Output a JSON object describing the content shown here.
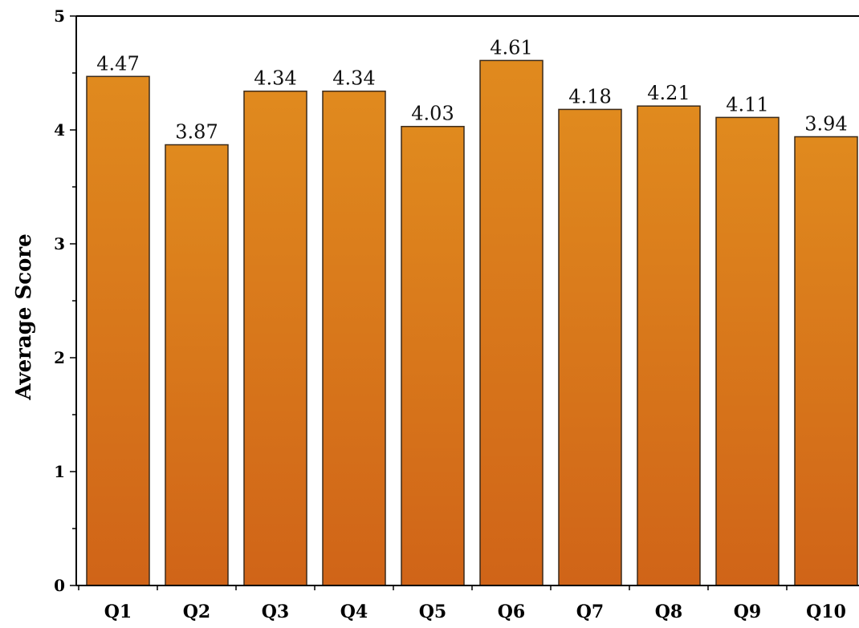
{
  "chart_data": {
    "type": "bar",
    "title": "",
    "xlabel": "",
    "ylabel": "Average Score",
    "ylim": [
      0,
      5
    ],
    "yticks": [
      0,
      1,
      2,
      3,
      4,
      5
    ],
    "categories": [
      "Q1",
      "Q2",
      "Q3",
      "Q4",
      "Q5",
      "Q6",
      "Q7",
      "Q8",
      "Q9",
      "Q10"
    ],
    "values": [
      4.47,
      3.87,
      4.34,
      4.34,
      4.03,
      4.61,
      4.18,
      4.21,
      4.11,
      3.94
    ],
    "data_labels": [
      "4.47",
      "3.87",
      "4.34",
      "4.34",
      "4.03",
      "4.61",
      "4.18",
      "4.21",
      "4.11",
      "3.94"
    ],
    "bar_color_top": "#e08a1e",
    "bar_color_bottom": "#d06418",
    "grid": false,
    "legend": "none"
  }
}
